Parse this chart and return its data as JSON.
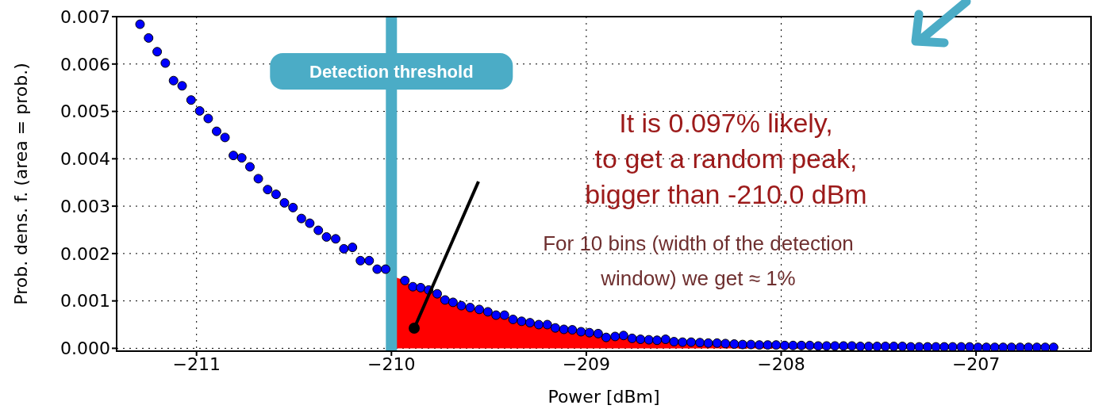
{
  "chart_data": {
    "type": "scatter",
    "xlabel": "Power [dBm]",
    "ylabel": "Prob. dens. f. (area = prob.)",
    "xlim": [
      -211.41,
      -206.41
    ],
    "xticks": [
      {
        "value": -211,
        "label": "−211"
      },
      {
        "value": -210,
        "label": "−210"
      },
      {
        "value": -209,
        "label": "−209"
      },
      {
        "value": -208,
        "label": "−208"
      },
      {
        "value": -207,
        "label": "−207"
      }
    ],
    "ylim": [
      -6e-05,
      0.007
    ],
    "yticks": [
      {
        "value": 0,
        "label": "0.000"
      },
      {
        "value": 0.001,
        "label": "0.001"
      },
      {
        "value": 0.002,
        "label": "0.002"
      },
      {
        "value": 0.003,
        "label": "0.003"
      },
      {
        "value": 0.004,
        "label": "0.004"
      },
      {
        "value": 0.005,
        "label": "0.005"
      },
      {
        "value": 0.006,
        "label": "0.006"
      },
      {
        "value": 0.007,
        "label": "0.007"
      }
    ],
    "grid": true,
    "legend": false,
    "marker": "circle",
    "ref_lines": [
      {
        "axis": "x",
        "value": -210,
        "label": "Detection threshold",
        "color": "#4bacc6"
      }
    ],
    "annotations": [
      "It is 0.097% likely,\nto get a random peak,\nbigger than -210.0 dBm",
      "For 10 bins (width of the detection\nwindow) we get ≈ 1%"
    ],
    "series": [
      {
        "type": "area",
        "color": "#ff0000",
        "marker": "none",
        "x": [
          -209.98,
          -209.931,
          -209.89,
          -209.85,
          -209.809,
          -209.765,
          -209.725,
          -209.684,
          -209.641,
          -209.596,
          -209.549,
          -209.505,
          -209.463,
          -209.42,
          -209.376,
          -209.332,
          -209.289,
          -209.244,
          -209.2,
          -209.159,
          -209.115,
          -209.072,
          -209.027,
          -208.984,
          -208.939,
          -208.898,
          -208.852,
          -208.809,
          -208.765,
          -208.722,
          -208.679,
          -208.637,
          -208.593,
          -208.55,
          -208.506,
          -208.462,
          -208.417,
          -208.374,
          -208.329,
          -208.286,
          -208.241,
          -208.198,
          -208.155,
          -208.112,
          -208.069,
          -208.026,
          -207.982,
          -207.939,
          -207.896,
          -207.853,
          -207.81,
          -207.767,
          -207.724,
          -207.68,
          -207.637,
          -207.594,
          -207.551,
          -207.508,
          -207.465,
          -207.422,
          -207.378,
          -207.335,
          -207.292,
          -207.249,
          -207.206,
          -207.163,
          -207.12,
          -207.076,
          -207.033,
          -206.99,
          -206.947,
          -206.904,
          -206.861,
          -206.818,
          -206.774,
          -206.731,
          -206.688,
          -206.645,
          -206.602
        ],
        "values": [
          0.0015,
          0.00143,
          0.0013,
          0.00128,
          0.00123,
          0.00115,
          0.00102,
          0.00097,
          0.0009,
          0.00086,
          0.00082,
          0.00077,
          0.0007,
          0.0007,
          0.00061,
          0.00057,
          0.00054,
          0.0005,
          0.0005,
          0.00043,
          0.0004,
          0.00039,
          0.00035,
          0.00033,
          0.00031,
          0.00023,
          0.00025,
          0.00027,
          0.00021,
          0.00019,
          0.00018,
          0.00017,
          0.00019,
          0.00014,
          0.00013,
          0.00013,
          0.00012,
          0.00011,
          0.00011,
          0.0001,
          9e-05,
          8e-05,
          8e-05,
          7e-05,
          7e-05,
          7e-05,
          6e-05,
          6e-05,
          6e-05,
          6e-05,
          5e-05,
          5e-05,
          5e-05,
          5e-05,
          5e-05,
          4e-05,
          4e-05,
          4e-05,
          4e-05,
          4e-05,
          4e-05,
          3e-05,
          3e-05,
          3e-05,
          3e-05,
          3e-05,
          3e-05,
          3e-05,
          3e-05,
          2e-05,
          2e-05,
          2e-05,
          2e-05,
          2e-05,
          2e-05,
          2e-05,
          2e-05,
          2e-05,
          2e-05
        ]
      },
      {
        "color": "#0000ff",
        "x": [
          -211.29,
          -211.246,
          -211.202,
          -211.16,
          -211.118,
          -211.074,
          -211.028,
          -210.984,
          -210.94,
          -210.897,
          -210.854,
          -210.811,
          -210.768,
          -210.726,
          -210.683,
          -210.635,
          -210.592,
          -210.549,
          -210.505,
          -210.462,
          -210.419,
          -210.375,
          -210.333,
          -210.286,
          -210.244,
          -210.2,
          -210.159,
          -210.114,
          -210.073,
          -210.03,
          -209.931,
          -209.89,
          -209.85,
          -209.809,
          -209.765,
          -209.725,
          -209.684,
          -209.641,
          -209.596,
          -209.549,
          -209.505,
          -209.463,
          -209.42,
          -209.376,
          -209.332,
          -209.289,
          -209.244,
          -209.2,
          -209.159,
          -209.115,
          -209.072,
          -209.027,
          -208.984,
          -208.939,
          -208.898,
          -208.852,
          -208.809,
          -208.765,
          -208.722,
          -208.679,
          -208.637,
          -208.593,
          -208.55,
          -208.506,
          -208.462,
          -208.417,
          -208.374,
          -208.329,
          -208.286,
          -208.241,
          -208.198,
          -208.155,
          -208.112,
          -208.069,
          -208.026,
          -207.982,
          -207.939,
          -207.896,
          -207.853,
          -207.81,
          -207.767,
          -207.724,
          -207.68,
          -207.637,
          -207.594,
          -207.551,
          -207.508,
          -207.465,
          -207.422,
          -207.378,
          -207.335,
          -207.292,
          -207.249,
          -207.206,
          -207.163,
          -207.12,
          -207.076,
          -207.033,
          -206.99,
          -206.947,
          -206.904,
          -206.861,
          -206.818,
          -206.774,
          -206.731,
          -206.688,
          -206.645,
          -206.602
        ],
        "values": [
          0.00684,
          0.00655,
          0.00626,
          0.00602,
          0.00565,
          0.00554,
          0.00524,
          0.00501,
          0.00485,
          0.00458,
          0.00445,
          0.00407,
          0.00402,
          0.00383,
          0.00358,
          0.00335,
          0.00325,
          0.00307,
          0.00297,
          0.00274,
          0.00264,
          0.00249,
          0.00235,
          0.00231,
          0.0021,
          0.00213,
          0.00185,
          0.00185,
          0.00167,
          0.00167,
          0.00143,
          0.0013,
          0.00128,
          0.00123,
          0.00115,
          0.00102,
          0.00097,
          0.0009,
          0.00086,
          0.00082,
          0.00077,
          0.0007,
          0.0007,
          0.00061,
          0.00057,
          0.00054,
          0.0005,
          0.0005,
          0.00043,
          0.0004,
          0.00039,
          0.00035,
          0.00033,
          0.00031,
          0.00023,
          0.00025,
          0.00027,
          0.00021,
          0.00019,
          0.00018,
          0.00017,
          0.00019,
          0.00014,
          0.00013,
          0.00013,
          0.00012,
          0.00011,
          0.00011,
          0.0001,
          9e-05,
          8e-05,
          8e-05,
          7e-05,
          7e-05,
          7e-05,
          6e-05,
          6e-05,
          6e-05,
          6e-05,
          5e-05,
          5e-05,
          5e-05,
          5e-05,
          5e-05,
          4e-05,
          4e-05,
          4e-05,
          4e-05,
          4e-05,
          4e-05,
          3e-05,
          3e-05,
          3e-05,
          3e-05,
          3e-05,
          3e-05,
          3e-05,
          3e-05,
          2e-05,
          2e-05,
          2e-05,
          2e-05,
          2e-05,
          2e-05,
          2e-05,
          2e-05,
          2e-05,
          2e-05
        ]
      }
    ]
  }
}
